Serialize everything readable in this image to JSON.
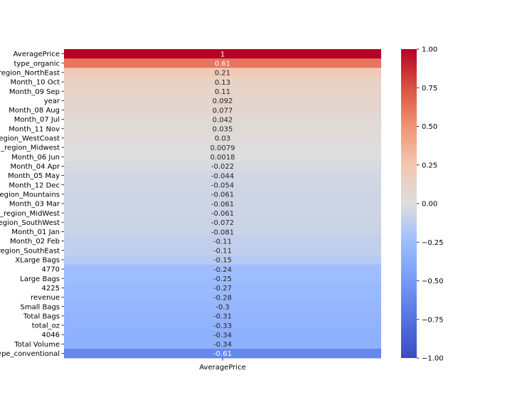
{
  "chart_data": {
    "type": "heatmap",
    "rows": [
      "AveragePrice",
      "type_organic",
      "region_NorthEast",
      "Month_10 Oct",
      "Month_09 Sep",
      "year",
      "Month_08 Aug",
      "Month_07 Jul",
      "Month_11 Nov",
      "region_WestCoast",
      "_region_Midwest",
      "Month_06 Jun",
      "Month_04 Apr",
      "Month_05 May",
      "Month_12 Dec",
      "region_Mountains",
      "Month_03 Mar",
      "_region_MidWest",
      "region_SouthWest",
      "Month_01 Jan",
      "Month_02 Feb",
      "region_SouthEast",
      "XLarge Bags",
      "4770",
      "Large Bags",
      "4225",
      "revenue",
      "Small Bags",
      "Total Bags",
      "total_oz",
      "4046",
      "Total Volume",
      "type_conventional"
    ],
    "columns": [
      "AveragePrice"
    ],
    "values": [
      1,
      0.61,
      0.21,
      0.13,
      0.11,
      0.092,
      0.077,
      0.042,
      0.035,
      0.03,
      0.0079,
      0.0018,
      -0.022,
      -0.044,
      -0.054,
      -0.061,
      -0.061,
      -0.061,
      -0.072,
      -0.081,
      -0.11,
      -0.11,
      -0.15,
      -0.24,
      -0.25,
      -0.27,
      -0.28,
      -0.3,
      -0.31,
      -0.33,
      -0.34,
      -0.34,
      -0.61
    ],
    "value_labels": [
      "1",
      "0.61",
      "0.21",
      "0.13",
      "0.11",
      "0.092",
      "0.077",
      "0.042",
      "0.035",
      "0.03",
      "0.0079",
      "0.0018",
      "-0.022",
      "-0.044",
      "-0.054",
      "-0.061",
      "-0.061",
      "-0.061",
      "-0.072",
      "-0.081",
      "-0.11",
      "-0.11",
      "-0.15",
      "-0.24",
      "-0.25",
      "-0.27",
      "-0.28",
      "-0.3",
      "-0.31",
      "-0.33",
      "-0.34",
      "-0.34",
      "-0.61"
    ],
    "colorbar": {
      "range": [
        -1,
        1
      ],
      "ticks": [
        1.0,
        0.75,
        0.5,
        0.25,
        0.0,
        -0.25,
        -0.5,
        -0.75,
        -1.0
      ],
      "tick_labels": [
        "1.00",
        "0.75",
        "0.50",
        "0.25",
        "0.00",
        "−0.25",
        "−0.50",
        "−0.75",
        "−1.00"
      ],
      "colormap": "coolwarm"
    },
    "annotations": true,
    "title": "",
    "xlabel": "",
    "ylabel": ""
  },
  "colors": {
    "cold": "#3b4cc0",
    "mid": "#dddddd",
    "hot": "#b40426",
    "text_dark": "#262626",
    "text_light": "#ffffff"
  }
}
